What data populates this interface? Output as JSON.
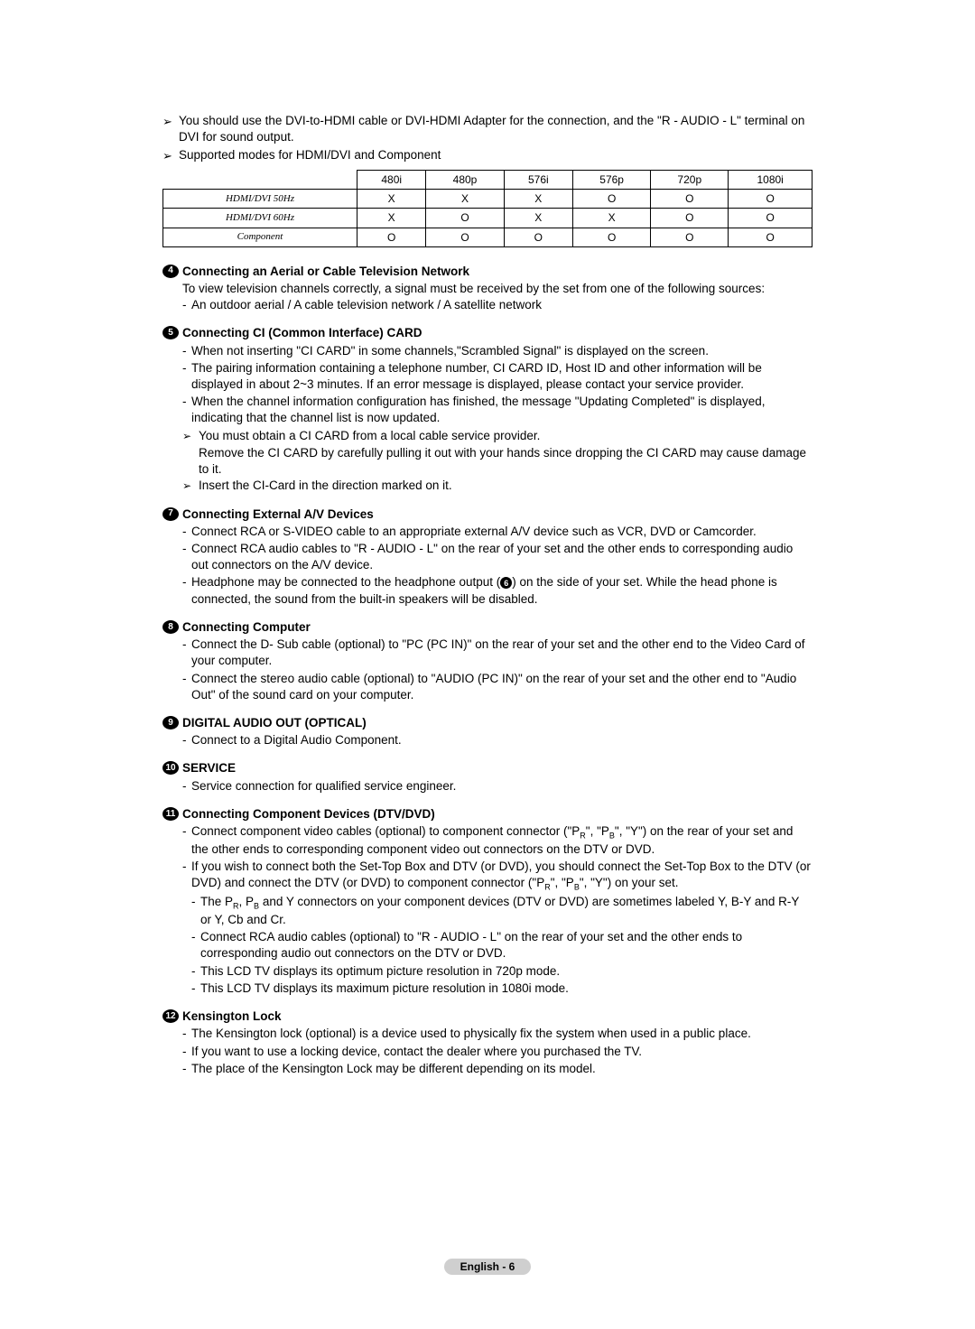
{
  "notes": {
    "dvi_hdmi": "You should use the DVI-to-HDMI cable or DVI-HDMI Adapter for the connection, and the \"R - AUDIO - L\" terminal on DVI for sound output.",
    "supported": "Supported modes for HDMI/DVI and Component"
  },
  "table": {
    "headers": [
      "",
      "480i",
      "480p",
      "576i",
      "576p",
      "720p",
      "1080i"
    ],
    "rows": [
      {
        "label": "HDMI/DVI 50Hz",
        "cells": [
          "X",
          "X",
          "X",
          "O",
          "O",
          "O"
        ]
      },
      {
        "label": "HDMI/DVI 60Hz",
        "cells": [
          "X",
          "O",
          "X",
          "X",
          "O",
          "O"
        ]
      },
      {
        "label": "Component",
        "cells": [
          "O",
          "O",
          "O",
          "O",
          "O",
          "O"
        ]
      }
    ]
  },
  "sections": [
    {
      "num": "4",
      "title": "Connecting an Aerial or Cable Television Network",
      "intro": "To view television channels correctly, a signal must be received by the set from one of the following sources:",
      "bullets": [
        "An outdoor aerial / A cable television network / A satellite network"
      ]
    },
    {
      "num": "5",
      "title": "Connecting CI (Common Interface) CARD",
      "bullets": [
        "When not inserting \"CI CARD\" in some channels,\"Scrambled Signal\" is displayed on the screen.",
        "The pairing information containing a telephone number, CI CARD ID, Host ID and other information will be displayed in about 2~3 minutes. If an error message is displayed, please contact your service provider.",
        "When the channel information configuration has finished, the message \"Updating Completed\" is displayed, indicating that the channel list is now updated."
      ],
      "arrows": [
        "You must obtain a CI CARD from a local cable service provider.",
        "Remove the CI CARD by carefully pulling it out with your hands since dropping the CI CARD may cause damage to it.",
        "Insert the CI-Card in the direction marked on it."
      ]
    },
    {
      "num": "7",
      "title": "Connecting External A/V Devices",
      "bullets": [
        "Connect RCA or S-VIDEO cable to an appropriate external A/V device such as VCR, DVD or Camcorder.",
        "Connect RCA audio cables to \"R - AUDIO - L\" on the rear of your set and the other ends to corresponding audio out connectors on the A/V device."
      ],
      "special_bullet": {
        "pre": "Headphone may be connected to the headphone output (",
        "circle": "6",
        "post": ") on the side of your set. While the head phone is connected, the sound from the built-in speakers will be disabled."
      }
    },
    {
      "num": "8",
      "title": "Connecting Computer",
      "bullets": [
        "Connect the D- Sub cable (optional) to \"PC (PC IN)\" on the rear of your set and the other end to the Video Card of your computer.",
        "Connect the stereo audio cable (optional) to \"AUDIO (PC IN)\" on the rear of your set and the other end to \"Audio Out\" of the sound card on your computer."
      ]
    },
    {
      "num": "9",
      "title": "DIGITAL AUDIO OUT (OPTICAL)",
      "bullets": [
        "Connect to a Digital Audio Component."
      ]
    },
    {
      "num": "10",
      "title": "SERVICE",
      "bullets": [
        "Service connection for qualified service engineer."
      ]
    },
    {
      "num": "11",
      "title": "Connecting Component Devices (DTV/DVD)",
      "rich": true
    },
    {
      "num": "12",
      "title": "Kensington Lock",
      "bullets": [
        "The Kensington lock (optional) is a device used to physically fix the system when used in a public place.",
        "If you want to use a locking device, contact the dealer where you purchased the TV.",
        "The place of the  Kensington Lock may be different depending on its model."
      ]
    }
  ],
  "component_section": {
    "b1_pre": "Connect component video cables (optional) to component connector (\"P",
    "b1_post": "\", \"Y\") on the rear of your set and the other ends to corresponding component video out connectors on the DTV or DVD.",
    "b2_pre": "If you wish to connect both the Set-Top Box and DTV (or DVD), you should connect the Set-Top Box to the DTV (or DVD) and connect the DTV (or DVD) to component connector (\"P",
    "b2_post": "\", \"Y\") on your set.",
    "sub1_pre": "The P",
    "sub1_post": " and Y connectors on your component devices (DTV or DVD) are sometimes labeled Y, B-Y and R-Y or Y, Cb and Cr.",
    "sub2": "Connect RCA audio cables (optional) to \"R - AUDIO - L\" on the rear of your set and the other ends to corresponding audio out connectors on the DTV or DVD.",
    "sub3": "This LCD TV displays its optimum picture resolution in 720p mode.",
    "sub4": "This LCD TV displays its maximum picture resolution in 1080i mode."
  },
  "footer": "English - 6"
}
